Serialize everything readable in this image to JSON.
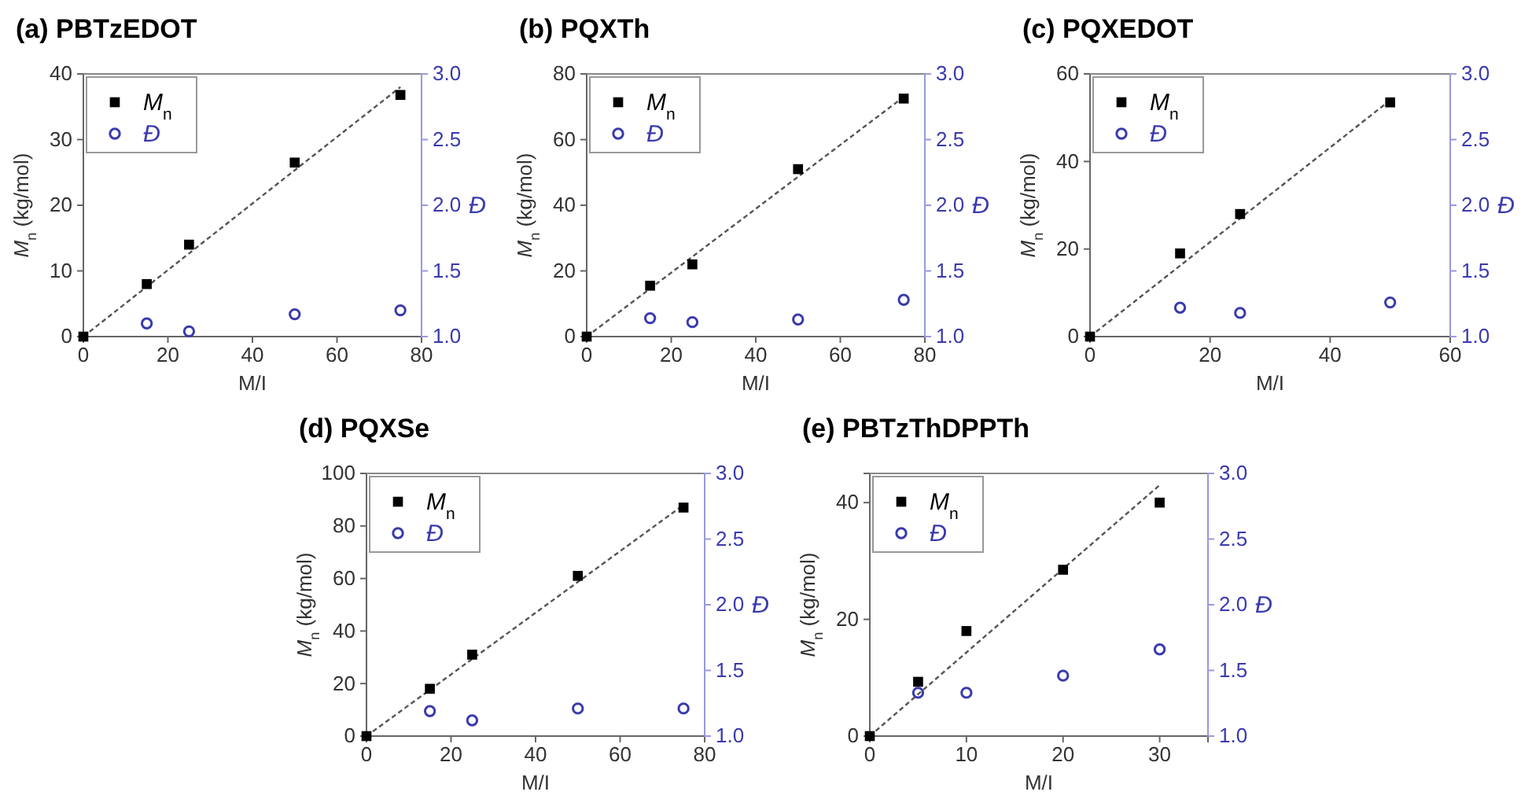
{
  "chart_data": [
    {
      "type": "scatter",
      "title": "(a) PBTzEDOT",
      "xlabel": "M/I",
      "ylabel": "M$_{n}$ (kg/mol)",
      "y2label": "Đ",
      "xlim": [
        0,
        80
      ],
      "xticks": [
        0,
        20,
        40,
        60,
        80
      ],
      "ylim": [
        0,
        40
      ],
      "yticks": [
        0,
        10,
        20,
        30,
        40
      ],
      "y2lim": [
        1,
        3
      ],
      "y2ticks": [
        {
          "value": 1,
          "label": "1.0"
        },
        {
          "value": 1.5,
          "label": "1.5"
        },
        {
          "value": 2,
          "label": "2.0"
        },
        {
          "value": 2.5,
          "label": "2.5"
        },
        {
          "value": 3,
          "label": "3.0"
        }
      ],
      "legend": "top left",
      "series": [
        {
          "name": "M$_{n}$",
          "color": "#000000",
          "marker": "square",
          "x": [
            0,
            15,
            25,
            50,
            75
          ],
          "values": [
            0,
            8,
            14,
            26.5,
            36.8
          ]
        },
        {
          "name": "Đ",
          "color": "#3a3aae",
          "marker": "circle",
          "axis": "y2",
          "x": [
            15,
            25,
            50,
            75
          ],
          "values": [
            1.1,
            1.04,
            1.17,
            1.2
          ]
        },
        {
          "type": "line",
          "color": "#555555",
          "line_style": "dashed",
          "x": [
            0,
            75
          ],
          "values": [
            0,
            38
          ]
        }
      ]
    },
    {
      "type": "scatter",
      "title": "(b) PQXTh",
      "xlabel": "M/I",
      "ylabel": "M$_{n}$ (kg/mol)",
      "y2label": "Đ",
      "xlim": [
        0,
        80
      ],
      "xticks": [
        0,
        20,
        40,
        60,
        80
      ],
      "ylim": [
        0,
        80
      ],
      "yticks": [
        0,
        20,
        40,
        60,
        80
      ],
      "y2lim": [
        1,
        3
      ],
      "y2ticks": [
        {
          "value": 1,
          "label": "1.0"
        },
        {
          "value": 1.5,
          "label": "1.5"
        },
        {
          "value": 2,
          "label": "2.0"
        },
        {
          "value": 2.5,
          "label": "2.5"
        },
        {
          "value": 3,
          "label": "3.0"
        }
      ],
      "legend": "top left",
      "series": [
        {
          "name": "M$_{n}$",
          "color": "#000000",
          "marker": "square",
          "x": [
            0,
            15,
            25,
            50,
            75
          ],
          "values": [
            0,
            15.5,
            22,
            51,
            72.5
          ]
        },
        {
          "name": "Đ",
          "color": "#3a3aae",
          "marker": "circle",
          "axis": "y2",
          "x": [
            15,
            25,
            50,
            75
          ],
          "values": [
            1.14,
            1.11,
            1.13,
            1.28
          ]
        },
        {
          "type": "line",
          "color": "#555555",
          "line_style": "dashed",
          "x": [
            0,
            75
          ],
          "values": [
            0,
            73
          ]
        }
      ]
    },
    {
      "type": "scatter",
      "title": "(c) PQXEDOT",
      "xlabel": "M/I",
      "ylabel": "M$_{n}$ (kg/mol)",
      "y2label": "Đ",
      "xlim": [
        0,
        60
      ],
      "xticks": [
        0,
        20,
        40,
        60
      ],
      "ylim": [
        0,
        60
      ],
      "yticks": [
        0,
        20,
        40,
        60
      ],
      "y2lim": [
        1,
        3
      ],
      "y2ticks": [
        {
          "value": 1,
          "label": "1.0"
        },
        {
          "value": 1.5,
          "label": "1.5"
        },
        {
          "value": 2,
          "label": "2.0"
        },
        {
          "value": 2.5,
          "label": "2.5"
        },
        {
          "value": 3,
          "label": "3.0"
        }
      ],
      "legend": "top left",
      "series": [
        {
          "name": "M$_{n}$",
          "color": "#000000",
          "marker": "square",
          "x": [
            0,
            15,
            25,
            50
          ],
          "values": [
            0,
            19,
            28,
            53.5
          ]
        },
        {
          "name": "Đ",
          "color": "#3a3aae",
          "marker": "circle",
          "axis": "y2",
          "x": [
            15,
            25,
            50
          ],
          "values": [
            1.22,
            1.18,
            1.26
          ]
        },
        {
          "type": "line",
          "color": "#555555",
          "line_style": "dashed",
          "x": [
            0,
            50
          ],
          "values": [
            0,
            54
          ]
        }
      ]
    },
    {
      "type": "scatter",
      "title": "(d) PQXSe",
      "xlabel": "M/I",
      "ylabel": "M$_{n}$ (kg/mol)",
      "y2label": "Đ",
      "xlim": [
        0,
        80
      ],
      "xticks": [
        0,
        20,
        40,
        60,
        80
      ],
      "ylim": [
        0,
        100
      ],
      "yticks": [
        0,
        20,
        40,
        60,
        80,
        100
      ],
      "y2lim": [
        1,
        3
      ],
      "y2ticks": [
        {
          "value": 1,
          "label": "1.0"
        },
        {
          "value": 1.5,
          "label": "1.5"
        },
        {
          "value": 2,
          "label": "2.0"
        },
        {
          "value": 2.5,
          "label": "2.5"
        },
        {
          "value": 3,
          "label": "3.0"
        }
      ],
      "legend": "top left",
      "series": [
        {
          "name": "M$_{n}$",
          "color": "#000000",
          "marker": "square",
          "x": [
            0,
            15,
            25,
            50,
            75
          ],
          "values": [
            0,
            18,
            31,
            61,
            87
          ]
        },
        {
          "name": "Đ",
          "color": "#3a3aae",
          "marker": "circle",
          "axis": "y2",
          "x": [
            15,
            25,
            50,
            75
          ],
          "values": [
            1.19,
            1.12,
            1.21,
            1.21
          ]
        },
        {
          "type": "line",
          "color": "#555555",
          "line_style": "dashed",
          "x": [
            0,
            75
          ],
          "values": [
            0,
            88
          ]
        }
      ]
    },
    {
      "type": "scatter",
      "title": "(e) PBTzThDPPTh",
      "xlabel": "M/I",
      "ylabel": "M$_{n}$ (kg/mol)",
      "y2label": "Đ",
      "xlim": [
        0,
        35
      ],
      "xticks": [
        0,
        10,
        20,
        30
      ],
      "ylim": [
        0,
        45
      ],
      "yticks": [
        0,
        20,
        40
      ],
      "y2lim": [
        1,
        3
      ],
      "y2ticks": [
        {
          "value": 1,
          "label": "1.0"
        },
        {
          "value": 1.5,
          "label": "1.5"
        },
        {
          "value": 2,
          "label": "2.0"
        },
        {
          "value": 2.5,
          "label": "2.5"
        },
        {
          "value": 3,
          "label": "3.0"
        }
      ],
      "legend": "top left",
      "series": [
        {
          "name": "M$_{n}$",
          "color": "#000000",
          "marker": "square",
          "x": [
            0,
            5,
            10,
            20,
            30
          ],
          "values": [
            0,
            9.3,
            18,
            28.5,
            40
          ]
        },
        {
          "name": "Đ",
          "color": "#3a3aae",
          "marker": "circle",
          "axis": "y2",
          "x": [
            5,
            10,
            20,
            30
          ],
          "values": [
            1.33,
            1.33,
            1.46,
            1.66
          ]
        },
        {
          "type": "line",
          "color": "#555555",
          "line_style": "dashed",
          "x": [
            0,
            30
          ],
          "values": [
            0,
            43
          ]
        }
      ]
    }
  ]
}
